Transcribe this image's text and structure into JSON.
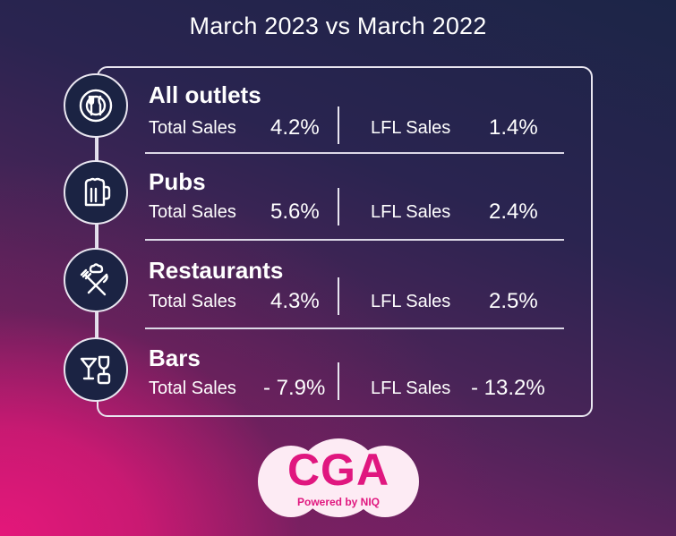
{
  "title": "March 2023 vs March 2022",
  "chart_data": {
    "type": "table",
    "title": "March 2023 vs March 2022",
    "columns": [
      "Total Sales",
      "LFL Sales"
    ],
    "rows": [
      {
        "category": "All outlets",
        "icon": "plate-cutlery-icon",
        "total_sales_label": "Total Sales",
        "total_sales": 4.2,
        "total_sales_text": "4.2%",
        "lfl_sales_label": "LFL Sales",
        "lfl_sales": 1.4,
        "lfl_sales_text": "1.4%"
      },
      {
        "category": "Pubs",
        "icon": "beer-mug-icon",
        "total_sales_label": "Total Sales",
        "total_sales": 5.6,
        "total_sales_text": "5.6%",
        "lfl_sales_label": "LFL Sales",
        "lfl_sales": 2.4,
        "lfl_sales_text": "2.4%"
      },
      {
        "category": "Restaurants",
        "icon": "chef-fork-knife-icon",
        "total_sales_label": "Total Sales",
        "total_sales": 4.3,
        "total_sales_text": "4.3%",
        "lfl_sales_label": "LFL Sales",
        "lfl_sales": 2.5,
        "lfl_sales_text": "2.5%"
      },
      {
        "category": "Bars",
        "icon": "cocktail-glasses-icon",
        "total_sales_label": "Total Sales",
        "total_sales": -7.9,
        "total_sales_text": "- 7.9%",
        "lfl_sales_label": "LFL Sales",
        "lfl_sales": -13.2,
        "lfl_sales_text": "- 13.2%"
      }
    ]
  },
  "logo": {
    "text": "CGA",
    "subtext": "Powered by NIQ",
    "color": "#e0177f"
  }
}
